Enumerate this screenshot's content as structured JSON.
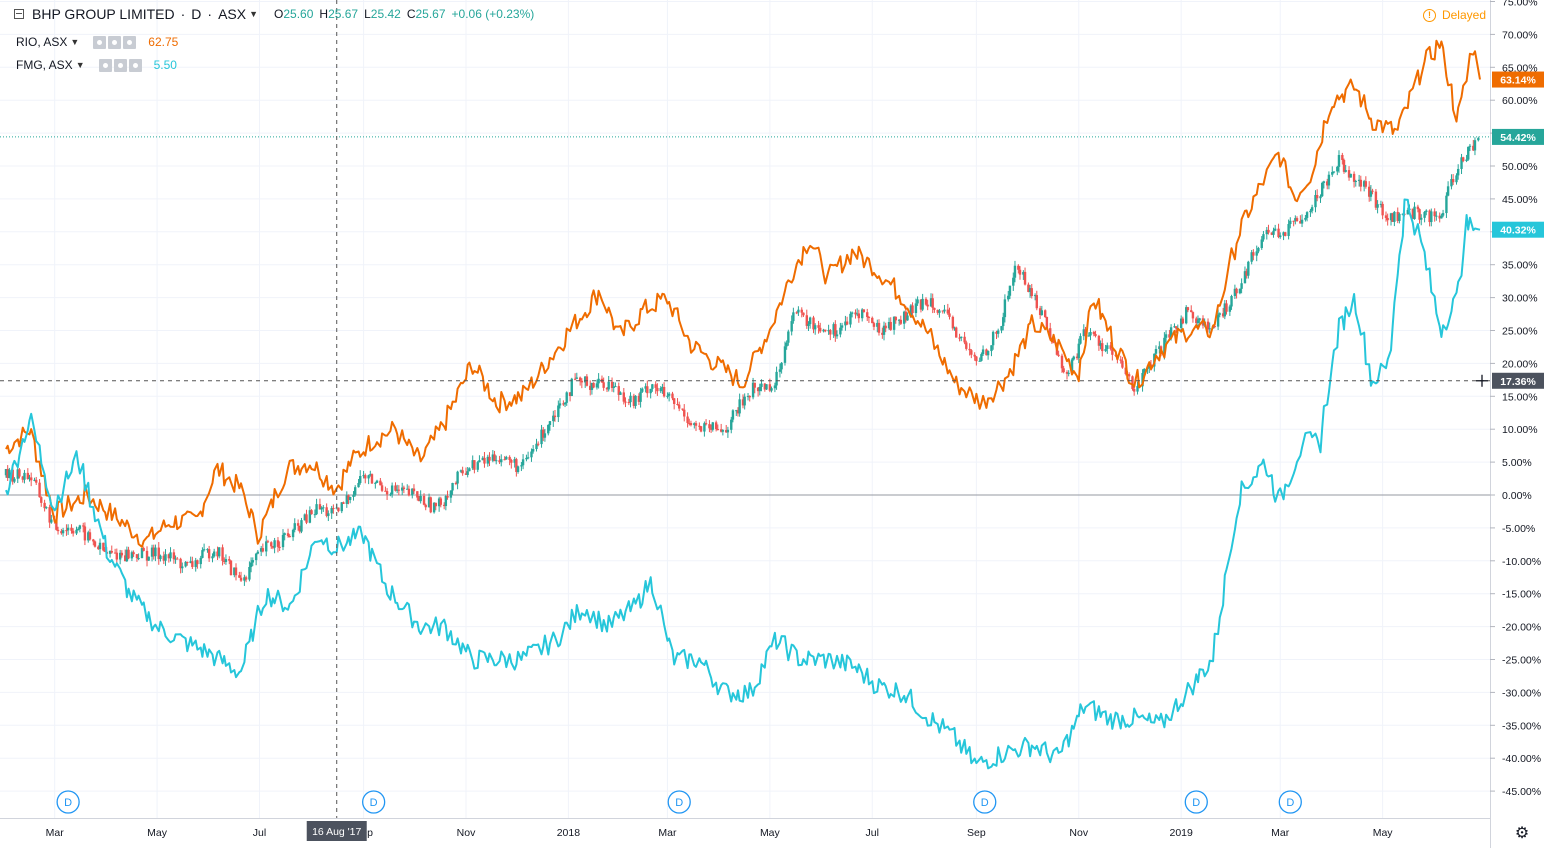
{
  "header": {
    "symbol_title": "BHP GROUP LIMITED",
    "interval": "D",
    "exchange": "ASX",
    "ohlc": [
      {
        "k": "O",
        "v": "25.60"
      },
      {
        "k": "H",
        "v": "25.67"
      },
      {
        "k": "L",
        "v": "25.42"
      },
      {
        "k": "C",
        "v": "25.67"
      },
      {
        "k": "",
        "v": "+0.06 (+0.23%)"
      }
    ],
    "delayed_label": "Delayed",
    "delayed_icon": "exclamation-icon"
  },
  "compare_series": [
    {
      "symbol": "RIO, ASX",
      "value": "62.75",
      "color": "#ef6c00"
    },
    {
      "symbol": "FMG, ASX",
      "value": "5.50",
      "color": "#26c6da"
    }
  ],
  "colors": {
    "up": "#26a69a",
    "down": "#ef5350",
    "rio": "#ef6c00",
    "fmg": "#26c6da",
    "bhp_label": "#26a69a"
  },
  "crosshair": {
    "date_label": "16 Aug '17",
    "price_label": "17.36%"
  },
  "last_labels": [
    {
      "series": "RIO",
      "text": "63.14%",
      "value": 63.14,
      "color": "#ef6c00"
    },
    {
      "series": "BHP",
      "text": "54.42%",
      "value": 54.42,
      "color": "#26a69a"
    },
    {
      "series": "FMG",
      "text": "40.32%",
      "value": 40.32,
      "color": "#26c6da"
    }
  ],
  "dividend_marker_label": "D",
  "settings_icon": "gear-icon",
  "chart_data": {
    "type": "line",
    "y_unit": "% change",
    "ylim": [
      -48,
      76
    ],
    "y_ticks": [
      75,
      70,
      65,
      60,
      55,
      50,
      45,
      40,
      35,
      30,
      25,
      20,
      15,
      10,
      5,
      0,
      -5,
      -10,
      -15,
      -20,
      -25,
      -30,
      -35,
      -40,
      -45
    ],
    "x_range": [
      "2017-01-31",
      "2019-06-28"
    ],
    "x_ticks": [
      {
        "label": "Mar",
        "date": "2017-03-01"
      },
      {
        "label": "May",
        "date": "2017-05-01"
      },
      {
        "label": "Jul",
        "date": "2017-07-01"
      },
      {
        "label": "Sep",
        "date": "2017-09-01"
      },
      {
        "label": "Nov",
        "date": "2017-11-01"
      },
      {
        "label": "2018",
        "date": "2018-01-01"
      },
      {
        "label": "Mar",
        "date": "2018-03-01"
      },
      {
        "label": "May",
        "date": "2018-05-01"
      },
      {
        "label": "Jul",
        "date": "2018-07-01"
      },
      {
        "label": "Sep",
        "date": "2018-09-01"
      },
      {
        "label": "Nov",
        "date": "2018-11-01"
      },
      {
        "label": "2019",
        "date": "2019-01-01"
      },
      {
        "label": "Mar",
        "date": "2019-03-01"
      },
      {
        "label": "May",
        "date": "2019-05-01"
      }
    ],
    "dividend_dates": [
      "2017-03-09",
      "2017-09-07",
      "2018-03-08",
      "2018-09-06",
      "2019-01-10",
      "2019-03-07"
    ],
    "series": [
      {
        "name": "RIO, ASX",
        "color": "#ef6c00",
        "points": [
          [
            "2017-01-31",
            7
          ],
          [
            "2017-02-15",
            10
          ],
          [
            "2017-03-01",
            -3
          ],
          [
            "2017-03-20",
            0
          ],
          [
            "2017-04-05",
            -3
          ],
          [
            "2017-04-25",
            -7
          ],
          [
            "2017-05-10",
            -4
          ],
          [
            "2017-05-25",
            -4
          ],
          [
            "2017-06-06",
            4
          ],
          [
            "2017-06-20",
            1
          ],
          [
            "2017-07-01",
            -6
          ],
          [
            "2017-07-18",
            4
          ],
          [
            "2017-08-01",
            5
          ],
          [
            "2017-08-16",
            1
          ],
          [
            "2017-08-25",
            5
          ],
          [
            "2017-09-05",
            8
          ],
          [
            "2017-09-20",
            10
          ],
          [
            "2017-10-05",
            5
          ],
          [
            "2017-10-20",
            11
          ],
          [
            "2017-11-05",
            20
          ],
          [
            "2017-11-20",
            14
          ],
          [
            "2017-12-05",
            15
          ],
          [
            "2017-12-25",
            22
          ],
          [
            "2018-01-05",
            26
          ],
          [
            "2018-01-20",
            31
          ],
          [
            "2018-02-01",
            24
          ],
          [
            "2018-02-15",
            28
          ],
          [
            "2018-03-01",
            30
          ],
          [
            "2018-03-15",
            23
          ],
          [
            "2018-03-30",
            20
          ],
          [
            "2018-04-15",
            17
          ],
          [
            "2018-05-01",
            25
          ],
          [
            "2018-05-15",
            34
          ],
          [
            "2018-05-25",
            39
          ],
          [
            "2018-06-05",
            33
          ],
          [
            "2018-06-20",
            37
          ],
          [
            "2018-07-01",
            35
          ],
          [
            "2018-07-20",
            30
          ],
          [
            "2018-08-05",
            24
          ],
          [
            "2018-08-20",
            17
          ],
          [
            "2018-09-05",
            14
          ],
          [
            "2018-09-20",
            18
          ],
          [
            "2018-10-05",
            26
          ],
          [
            "2018-10-20",
            23
          ],
          [
            "2018-11-01",
            18
          ],
          [
            "2018-11-10",
            30
          ],
          [
            "2018-11-25",
            22
          ],
          [
            "2018-12-05",
            17
          ],
          [
            "2018-12-20",
            22
          ],
          [
            "2019-01-05",
            25
          ],
          [
            "2019-01-20",
            25
          ],
          [
            "2019-02-05",
            40
          ],
          [
            "2019-02-20",
            48
          ],
          [
            "2019-03-01",
            52
          ],
          [
            "2019-03-10",
            45
          ],
          [
            "2019-03-20",
            49
          ],
          [
            "2019-04-01",
            60
          ],
          [
            "2019-04-15",
            62
          ],
          [
            "2019-04-25",
            57
          ],
          [
            "2019-05-10",
            55
          ],
          [
            "2019-05-25",
            65
          ],
          [
            "2019-06-05",
            69
          ],
          [
            "2019-06-15",
            57
          ],
          [
            "2019-06-25",
            69
          ],
          [
            "2019-06-28",
            63.14
          ]
        ]
      },
      {
        "name": "FMG, ASX",
        "color": "#26c6da",
        "points": [
          [
            "2017-01-31",
            0
          ],
          [
            "2017-02-15",
            12
          ],
          [
            "2017-03-01",
            -2
          ],
          [
            "2017-03-15",
            6
          ],
          [
            "2017-04-01",
            -8
          ],
          [
            "2017-04-15",
            -15
          ],
          [
            "2017-05-01",
            -20
          ],
          [
            "2017-05-15",
            -22
          ],
          [
            "2017-06-01",
            -24
          ],
          [
            "2017-06-20",
            -27
          ],
          [
            "2017-07-05",
            -15
          ],
          [
            "2017-07-20",
            -17
          ],
          [
            "2017-08-05",
            -6
          ],
          [
            "2017-08-16",
            -8
          ],
          [
            "2017-09-01",
            -6
          ],
          [
            "2017-09-15",
            -14
          ],
          [
            "2017-10-05",
            -20
          ],
          [
            "2017-10-20",
            -20
          ],
          [
            "2017-11-05",
            -25
          ],
          [
            "2017-11-20",
            -25
          ],
          [
            "2017-12-05",
            -25
          ],
          [
            "2017-12-25",
            -22
          ],
          [
            "2018-01-10",
            -17
          ],
          [
            "2018-01-25",
            -20
          ],
          [
            "2018-02-10",
            -17
          ],
          [
            "2018-02-20",
            -13
          ],
          [
            "2018-03-05",
            -25
          ],
          [
            "2018-03-20",
            -25
          ],
          [
            "2018-04-05",
            -30
          ],
          [
            "2018-04-20",
            -30
          ],
          [
            "2018-05-05",
            -22
          ],
          [
            "2018-05-20",
            -25
          ],
          [
            "2018-06-05",
            -25
          ],
          [
            "2018-06-20",
            -26
          ],
          [
            "2018-07-05",
            -29
          ],
          [
            "2018-07-20",
            -30
          ],
          [
            "2018-08-05",
            -34
          ],
          [
            "2018-08-20",
            -37
          ],
          [
            "2018-09-01",
            -41
          ],
          [
            "2018-09-20",
            -39
          ],
          [
            "2018-10-05",
            -38
          ],
          [
            "2018-10-20",
            -40
          ],
          [
            "2018-11-05",
            -32
          ],
          [
            "2018-11-20",
            -34
          ],
          [
            "2018-12-05",
            -34
          ],
          [
            "2018-12-20",
            -35
          ],
          [
            "2019-01-05",
            -30
          ],
          [
            "2019-01-20",
            -25
          ],
          [
            "2019-02-05",
            0
          ],
          [
            "2019-02-20",
            5
          ],
          [
            "2019-03-01",
            -1
          ],
          [
            "2019-03-15",
            8
          ],
          [
            "2019-03-25",
            8
          ],
          [
            "2019-04-05",
            25
          ],
          [
            "2019-04-15",
            30
          ],
          [
            "2019-04-25",
            17
          ],
          [
            "2019-05-05",
            20
          ],
          [
            "2019-05-15",
            45
          ],
          [
            "2019-05-25",
            38
          ],
          [
            "2019-06-05",
            25
          ],
          [
            "2019-06-15",
            30
          ],
          [
            "2019-06-20",
            41
          ],
          [
            "2019-06-28",
            40.32
          ]
        ]
      },
      {
        "name": "BHP GROUP LIMITED",
        "style": "candlestick",
        "points": [
          [
            "2017-01-31",
            3
          ],
          [
            "2017-02-15",
            3
          ],
          [
            "2017-03-01",
            -5
          ],
          [
            "2017-03-15",
            -5
          ],
          [
            "2017-04-01",
            -9
          ],
          [
            "2017-04-20",
            -9
          ],
          [
            "2017-05-05",
            -9
          ],
          [
            "2017-05-20",
            -11
          ],
          [
            "2017-06-05",
            -8
          ],
          [
            "2017-06-20",
            -13
          ],
          [
            "2017-07-05",
            -8
          ],
          [
            "2017-07-20",
            -6
          ],
          [
            "2017-08-05",
            -2
          ],
          [
            "2017-08-16",
            -3
          ],
          [
            "2017-09-01",
            3
          ],
          [
            "2017-09-15",
            1
          ],
          [
            "2017-10-01",
            0
          ],
          [
            "2017-10-15",
            -2
          ],
          [
            "2017-11-01",
            4
          ],
          [
            "2017-11-20",
            6
          ],
          [
            "2017-12-05",
            4
          ],
          [
            "2017-12-25",
            13
          ],
          [
            "2018-01-05",
            17
          ],
          [
            "2018-01-25",
            17
          ],
          [
            "2018-02-10",
            14
          ],
          [
            "2018-02-20",
            17
          ],
          [
            "2018-03-05",
            14
          ],
          [
            "2018-03-20",
            10
          ],
          [
            "2018-04-05",
            10
          ],
          [
            "2018-04-20",
            16
          ],
          [
            "2018-05-05",
            17
          ],
          [
            "2018-05-15",
            28
          ],
          [
            "2018-05-25",
            26
          ],
          [
            "2018-06-10",
            25
          ],
          [
            "2018-06-25",
            28
          ],
          [
            "2018-07-05",
            25
          ],
          [
            "2018-07-20",
            27
          ],
          [
            "2018-08-05",
            30
          ],
          [
            "2018-08-20",
            25
          ],
          [
            "2018-09-01",
            20
          ],
          [
            "2018-09-15",
            25
          ],
          [
            "2018-09-25",
            35
          ],
          [
            "2018-10-10",
            28
          ],
          [
            "2018-10-25",
            18
          ],
          [
            "2018-11-05",
            25
          ],
          [
            "2018-11-20",
            22
          ],
          [
            "2018-12-05",
            16
          ],
          [
            "2018-12-20",
            22
          ],
          [
            "2019-01-05",
            28
          ],
          [
            "2019-01-20",
            25
          ],
          [
            "2019-02-05",
            32
          ],
          [
            "2019-02-20",
            40
          ],
          [
            "2019-03-05",
            40
          ],
          [
            "2019-03-20",
            44
          ],
          [
            "2019-04-05",
            51
          ],
          [
            "2019-04-20",
            47
          ],
          [
            "2019-05-05",
            42
          ],
          [
            "2019-05-20",
            43
          ],
          [
            "2019-06-05",
            42
          ],
          [
            "2019-06-15",
            50
          ],
          [
            "2019-06-28",
            54.42
          ]
        ]
      }
    ]
  }
}
